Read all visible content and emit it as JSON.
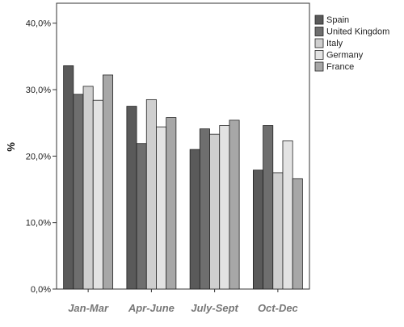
{
  "chart_data": {
    "type": "bar",
    "title": "",
    "xlabel": "",
    "ylabel": "%",
    "categories": [
      "Jan-Mar",
      "Apr-June",
      "July-Sept",
      "Oct-Dec"
    ],
    "series": [
      {
        "name": "Spain",
        "color": "#5a5a5a",
        "values": [
          33.6,
          27.5,
          21.0,
          17.9
        ]
      },
      {
        "name": "United Kingdom",
        "color": "#6e6e6e",
        "values": [
          29.3,
          21.9,
          24.1,
          24.6
        ]
      },
      {
        "name": "Italy",
        "color": "#cfcfcf",
        "values": [
          30.5,
          28.5,
          23.3,
          17.5
        ]
      },
      {
        "name": "Germany",
        "color": "#e3e3e3",
        "values": [
          28.4,
          24.4,
          24.6,
          22.3
        ]
      },
      {
        "name": "France",
        "color": "#a7a7a7",
        "values": [
          32.2,
          25.8,
          25.4,
          16.6
        ]
      }
    ],
    "ylim": [
      0,
      43
    ],
    "yticks": [
      0,
      10,
      20,
      30,
      40
    ],
    "ytick_labels": [
      "0,0%",
      "10,0%",
      "20,0%",
      "30,0%",
      "40,0%"
    ],
    "grid": false,
    "legend_position": "top-right"
  }
}
